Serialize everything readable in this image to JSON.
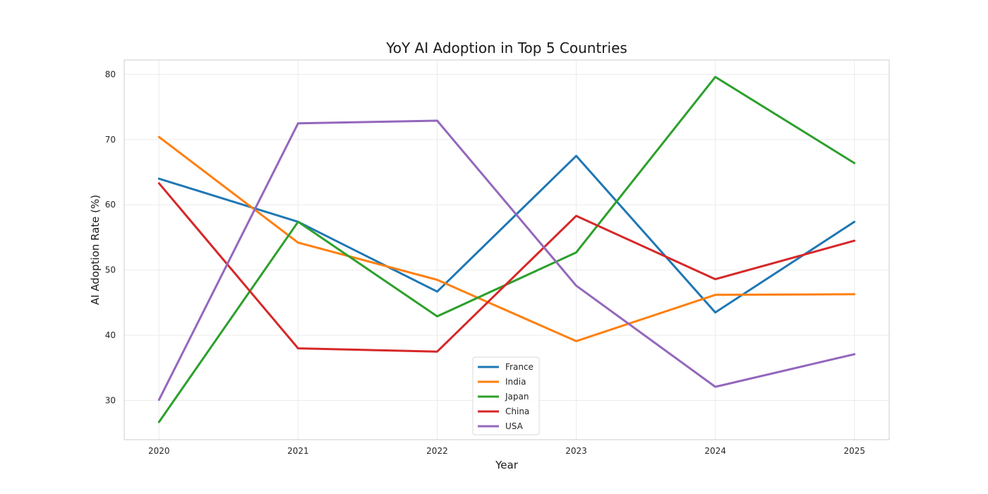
{
  "chart_data": {
    "type": "line",
    "title": "YoY AI Adoption in Top 5 Countries",
    "xlabel": "Year",
    "ylabel": "AI Adoption Rate (%)",
    "x": [
      2020,
      2021,
      2022,
      2023,
      2024,
      2025
    ],
    "xticks": [
      "2020",
      "2021",
      "2022",
      "2023",
      "2024",
      "2025"
    ],
    "yticks": [
      30,
      40,
      50,
      60,
      70,
      80
    ],
    "ylim": [
      24,
      82.2
    ],
    "xlim": [
      2019.75,
      2025.25
    ],
    "grid": true,
    "legend_position": "bottom-center",
    "series": [
      {
        "name": "France",
        "color": "#1f77b4",
        "values": [
          64.0,
          57.4,
          46.7,
          67.5,
          43.5,
          57.4
        ]
      },
      {
        "name": "India",
        "color": "#ff7f0e",
        "values": [
          70.4,
          54.2,
          48.5,
          39.1,
          46.2,
          46.3
        ]
      },
      {
        "name": "Japan",
        "color": "#2ca02c",
        "values": [
          26.7,
          57.4,
          42.9,
          52.7,
          79.6,
          66.4
        ]
      },
      {
        "name": "China",
        "color": "#d62728",
        "values": [
          63.3,
          38.0,
          37.5,
          58.3,
          48.6,
          54.5
        ]
      },
      {
        "name": "USA",
        "color": "#9467bd",
        "values": [
          30.1,
          72.5,
          72.9,
          47.6,
          32.1,
          37.1
        ]
      }
    ]
  }
}
